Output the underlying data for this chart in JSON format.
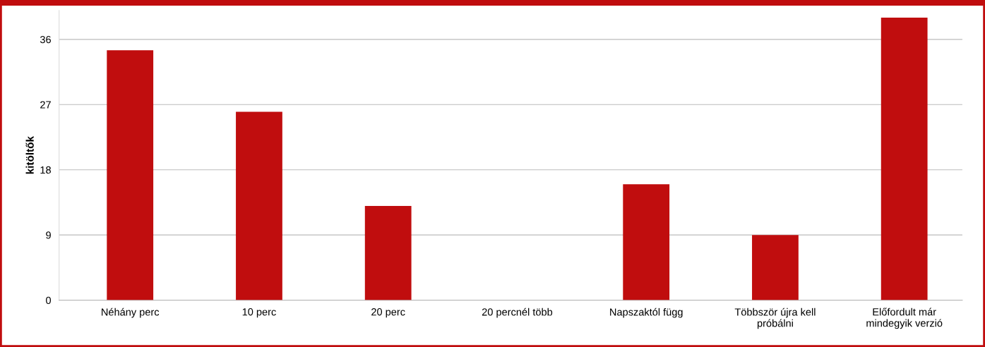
{
  "chart_data": {
    "type": "bar",
    "ylabel": "kitöltők",
    "categories": [
      "Néhány perc",
      "10 perc",
      "20 perc",
      "20 percnél több",
      "Napszaktól függ",
      "Többször újra kell\npróbálni",
      "Előfordult már\nmindegyik verzió"
    ],
    "values": [
      34.5,
      26,
      13,
      0,
      16,
      9,
      39
    ],
    "color": "#c00d0e",
    "ylim": [
      0,
      40
    ],
    "yticks": [
      0,
      9,
      18,
      27,
      36
    ],
    "grid": "y"
  }
}
